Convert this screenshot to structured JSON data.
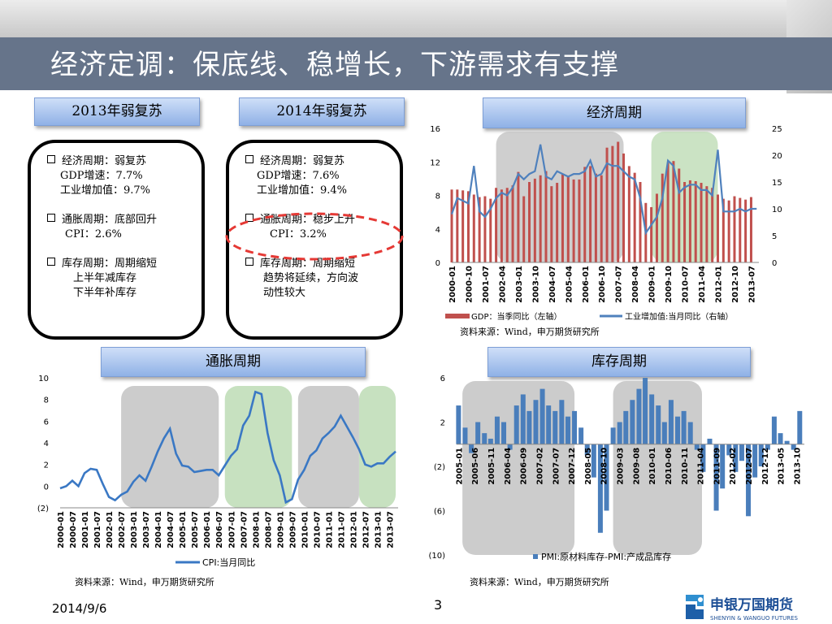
{
  "title": "经济定调：保底线、稳增长，下游需求有支撑",
  "boxes": {
    "y2013": {
      "header": "2013年弱复苏",
      "lines": [
        "经济周期：弱复苏",
        "GDP增速：7.7%",
        "工业增加值：9.7%",
        "通胀周期：底部回升",
        "CPI：2.6%",
        "库存周期：周期缩短",
        "上半年减库存",
        "下半年补库存"
      ]
    },
    "y2014": {
      "header": "2014年弱复苏",
      "lines": [
        "经济周期：弱复苏",
        "GDP增速：7.6%",
        "工业增加值：9.4%",
        "通胀周期：稳步上升",
        "CPI：3.2%",
        "库存周期：周期缩短",
        "趋势将延续，方向波",
        "动性较大"
      ]
    }
  },
  "panels": {
    "economic": "经济周期",
    "inflation": "通胀周期",
    "inventory": "库存周期"
  },
  "source": "资料来源：Wind，申万期货研究所",
  "footer": {
    "date": "2014/9/6",
    "page": "3"
  },
  "logo": {
    "cn": "申银万国期货",
    "en": "SHENYIN & WANGUO FUTURES"
  },
  "colors": {
    "gdp_bar": "#c0504d",
    "ip_line": "#4f81bd",
    "cpi_line": "#3a78c4",
    "pmi_bar": "#4a7ebb",
    "gray_band": "#bfbfbf",
    "green_band": "#b9d9b0",
    "title_bar": "#66748a",
    "highlight_oval": "#e53935"
  },
  "chart_data": [
    {
      "type": "bar+line",
      "title": "",
      "x_ticks": [
        "2000-01",
        "2000-10",
        "2001-07",
        "2002-04",
        "2003-01",
        "2003-10",
        "2004-07",
        "2005-04",
        "2006-01",
        "2006-10",
        "2007-07",
        "2008-04",
        "2009-01",
        "2009-10",
        "2010-07",
        "2011-04",
        "2012-01",
        "2012-10",
        "2013-07"
      ],
      "y_left_ticks": [
        "0",
        "4",
        "8",
        "12",
        "16"
      ],
      "y_right_ticks": [
        "0",
        "5",
        "10",
        "15",
        "20",
        "25"
      ],
      "ylim_left": [
        0,
        16
      ],
      "ylim_right": [
        0,
        25
      ],
      "series": [
        {
          "name": "GDP：当季同比（左轴）",
          "kind": "bar",
          "axis": "left",
          "x": [
            2000.0,
            2000.25,
            2000.5,
            2000.75,
            2001.0,
            2001.25,
            2001.5,
            2001.75,
            2002.0,
            2002.25,
            2002.5,
            2002.75,
            2003.0,
            2003.25,
            2003.5,
            2003.75,
            2004.0,
            2004.25,
            2004.5,
            2004.75,
            2005.0,
            2005.25,
            2005.5,
            2005.75,
            2006.0,
            2006.25,
            2006.5,
            2006.75,
            2007.0,
            2007.25,
            2007.5,
            2007.75,
            2008.0,
            2008.25,
            2008.5,
            2008.75,
            2009.0,
            2009.25,
            2009.5,
            2009.75,
            2010.0,
            2010.25,
            2010.5,
            2010.75,
            2011.0,
            2011.25,
            2011.5,
            2011.75,
            2012.0,
            2012.25,
            2012.5,
            2012.75,
            2013.0,
            2013.25,
            2013.5
          ],
          "values": [
            8.7,
            8.7,
            8.6,
            8.5,
            8.1,
            7.8,
            7.9,
            7.6,
            8.9,
            8.7,
            8.9,
            9.2,
            10.8,
            7.9,
            9.6,
            10.0,
            10.4,
            10.9,
            9.1,
            9.5,
            10.5,
            10.2,
            9.9,
            9.9,
            11.4,
            11.5,
            10.6,
            10.4,
            13.7,
            13.9,
            14.4,
            13.0,
            11.5,
            10.7,
            9.6,
            7.1,
            6.6,
            8.2,
            10.6,
            11.9,
            12.1,
            11.2,
            9.6,
            9.8,
            9.7,
            9.5,
            9.1,
            8.9,
            8.1,
            7.6,
            7.4,
            7.9,
            7.7,
            7.5,
            7.8
          ]
        },
        {
          "name": "工业增加值:当月同比（右轴）",
          "kind": "line",
          "axis": "right",
          "x": [
            2000.0,
            2000.25,
            2000.5,
            2000.75,
            2001.0,
            2001.25,
            2001.5,
            2001.75,
            2002.0,
            2002.25,
            2002.5,
            2002.75,
            2003.0,
            2003.25,
            2003.5,
            2003.75,
            2004.0,
            2004.25,
            2004.5,
            2004.75,
            2005.0,
            2005.25,
            2005.5,
            2005.75,
            2006.0,
            2006.25,
            2006.5,
            2006.75,
            2007.0,
            2007.25,
            2007.5,
            2007.75,
            2008.0,
            2008.25,
            2008.5,
            2008.75,
            2009.0,
            2009.25,
            2009.5,
            2009.75,
            2010.0,
            2010.25,
            2010.5,
            2010.75,
            2011.0,
            2011.25,
            2011.5,
            2011.75,
            2012.0,
            2012.25,
            2012.5,
            2012.75,
            2013.0,
            2013.25,
            2013.5,
            2013.75
          ],
          "values": [
            9.0,
            12.0,
            11.5,
            11.0,
            18.0,
            9.5,
            8.5,
            10.0,
            12.0,
            13.0,
            12.5,
            14.0,
            16.5,
            15.5,
            16.5,
            17.0,
            22.0,
            16.0,
            15.5,
            17.0,
            16.5,
            16.0,
            16.5,
            16.5,
            17.0,
            19.0,
            16.0,
            16.5,
            18.5,
            18.0,
            18.0,
            17.0,
            16.0,
            15.5,
            12.0,
            5.5,
            7.0,
            8.5,
            12.0,
            19.0,
            18.0,
            13.0,
            14.0,
            14.5,
            14.5,
            13.5,
            13.5,
            12.5,
            21.0,
            9.5,
            9.5,
            9.5,
            10.0,
            9.5,
            10.0,
            10.0
          ]
        }
      ],
      "shaded_ranges": [
        {
          "from": 2002.0,
          "to": 2007.75,
          "color": "gray"
        },
        {
          "from": 2009.0,
          "to": 2012.0,
          "color": "green"
        }
      ],
      "legend_position": "bottom"
    },
    {
      "type": "line",
      "title": "",
      "x_ticks": [
        "2000-01",
        "2000-07",
        "2001-01",
        "2001-07",
        "2002-01",
        "2002-07",
        "2003-01",
        "2003-07",
        "2004-01",
        "2004-07",
        "2005-01",
        "2005-07",
        "2006-01",
        "2006-07",
        "2007-01",
        "2007-07",
        "2008-01",
        "2008-07",
        "2009-01",
        "2009-07",
        "2010-01",
        "2010-07",
        "2011-01",
        "2011-07",
        "2012-01",
        "2012-07",
        "2013-01",
        "2013-07"
      ],
      "y_ticks": [
        "(2)",
        "0",
        "2",
        "4",
        "6",
        "8",
        "10"
      ],
      "ylim": [
        -2,
        10
      ],
      "series": [
        {
          "name": "CPI:当月同比",
          "x": [
            2000.0,
            2000.25,
            2000.5,
            2000.75,
            2001.0,
            2001.25,
            2001.5,
            2001.75,
            2002.0,
            2002.25,
            2002.5,
            2002.75,
            2003.0,
            2003.25,
            2003.5,
            2003.75,
            2004.0,
            2004.25,
            2004.5,
            2004.75,
            2005.0,
            2005.25,
            2005.5,
            2005.75,
            2006.0,
            2006.25,
            2006.5,
            2006.75,
            2007.0,
            2007.25,
            2007.5,
            2007.75,
            2008.0,
            2008.25,
            2008.5,
            2008.75,
            2009.0,
            2009.25,
            2009.5,
            2009.75,
            2010.0,
            2010.25,
            2010.5,
            2010.75,
            2011.0,
            2011.25,
            2011.5,
            2011.75,
            2012.0,
            2012.25,
            2012.5,
            2012.75,
            2013.0,
            2013.25,
            2013.5,
            2013.75
          ],
          "values": [
            -0.2,
            0.0,
            0.5,
            0.0,
            1.2,
            1.6,
            1.5,
            0.2,
            -1.0,
            -1.3,
            -0.8,
            -0.5,
            0.4,
            1.0,
            0.5,
            1.8,
            3.2,
            4.4,
            5.3,
            3.0,
            1.9,
            1.8,
            1.3,
            1.4,
            1.5,
            1.5,
            1.0,
            1.9,
            2.8,
            3.4,
            5.6,
            6.5,
            8.7,
            8.5,
            4.9,
            2.4,
            1.0,
            -1.5,
            -1.2,
            0.6,
            1.5,
            2.8,
            3.3,
            4.4,
            4.9,
            5.5,
            6.5,
            5.5,
            4.5,
            3.4,
            2.0,
            1.8,
            2.1,
            2.1,
            2.7,
            3.2
          ]
        }
      ],
      "shaded_ranges": [
        {
          "from": 2002.5,
          "to": 2006.5,
          "color": "gray"
        },
        {
          "from": 2006.75,
          "to": 2009.5,
          "color": "green"
        },
        {
          "from": 2009.75,
          "to": 2012.25,
          "color": "gray"
        },
        {
          "from": 2012.25,
          "to": 2013.75,
          "color": "green"
        }
      ],
      "legend_position": "bottom"
    },
    {
      "type": "bar",
      "title": "",
      "x_ticks": [
        "2005-01",
        "2005-06",
        "2005-11",
        "2006-04",
        "2006-09",
        "2007-02",
        "2007-07",
        "2007-12",
        "2008-05",
        "2008-10",
        "2009-03",
        "2009-08",
        "2010-01",
        "2010-06",
        "2010-11",
        "2011-04",
        "2011-09",
        "2012-02",
        "2012-07",
        "2012-12",
        "2013-05",
        "2013-10"
      ],
      "y_ticks": [
        "(10)",
        "(6)",
        "(2)",
        "2",
        "6"
      ],
      "ylim": [
        -10,
        6
      ],
      "series": [
        {
          "name": "PMI:原材料库存-PMI:产成品库存",
          "x": [
            2005.0,
            2005.17,
            2005.33,
            2005.5,
            2005.67,
            2005.83,
            2006.0,
            2006.17,
            2006.33,
            2006.5,
            2006.67,
            2006.83,
            2007.0,
            2007.17,
            2007.33,
            2007.5,
            2007.67,
            2007.83,
            2008.0,
            2008.17,
            2008.33,
            2008.5,
            2008.67,
            2008.83,
            2009.0,
            2009.17,
            2009.33,
            2009.5,
            2009.67,
            2009.83,
            2010.0,
            2010.17,
            2010.33,
            2010.5,
            2010.67,
            2010.83,
            2011.0,
            2011.17,
            2011.33,
            2011.5,
            2011.67,
            2011.83,
            2012.0,
            2012.17,
            2012.33,
            2012.5,
            2012.67,
            2012.83,
            2013.0,
            2013.17,
            2013.33,
            2013.5,
            2013.67,
            2013.83
          ],
          "values": [
            3.5,
            1.5,
            -0.8,
            2.0,
            1.0,
            0.5,
            2.5,
            2.0,
            -0.5,
            3.5,
            4.5,
            3.0,
            4.0,
            5.0,
            3.5,
            3.0,
            4.0,
            2.5,
            3.0,
            1.5,
            -1.0,
            -3.0,
            -8.0,
            -6.0,
            1.5,
            2.0,
            3.0,
            4.0,
            5.0,
            6.0,
            4.5,
            3.5,
            2.0,
            4.0,
            2.5,
            3.0,
            2.0,
            -0.5,
            -2.5,
            0.5,
            -6.0,
            -4.0,
            -1.0,
            -2.5,
            -1.5,
            -6.5,
            -3.0,
            -2.0,
            -0.5,
            2.5,
            1.0,
            0.3,
            -0.5,
            3.0
          ]
        }
      ],
      "shaded_ranges": [
        {
          "from": 2005.1,
          "to": 2008.0,
          "color": "gray"
        },
        {
          "from": 2009.0,
          "to": 2011.3,
          "color": "gray"
        }
      ],
      "legend_position": "bottom"
    }
  ]
}
